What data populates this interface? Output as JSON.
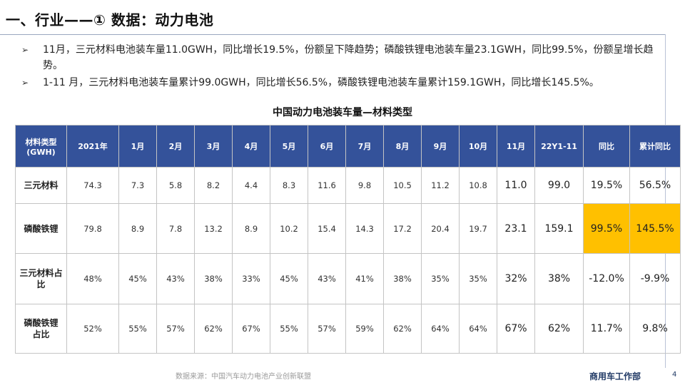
{
  "title": "一、行业——① 数据：动力电池",
  "bullets": [
    {
      "arrow": "➢",
      "text": "11月，三元材料电池装车量11.0GWH，同比增长19.5%，份额呈下降趋势；磷酸铁锂电池装车量23.1GWH，同比99.5%，份额呈增长趋势。"
    },
    {
      "arrow": "➢",
      "text": "1-11 月，三元材料电池装车量累计99.0GWH，同比增长56.5%，磷酸铁锂电池装车量累计159.1GWH，同比增长145.5%。"
    }
  ],
  "table": {
    "title": "中国动力电池装车量—材料类型",
    "header_corner": [
      "材料类型",
      "(GWH)"
    ],
    "columns": [
      "2021年",
      "1月",
      "2月",
      "3月",
      "4月",
      "5月",
      "6月",
      "7月",
      "8月",
      "9月",
      "10月",
      "11月",
      "22Y1-11",
      "同比",
      "累计同比"
    ],
    "rows": [
      {
        "label": [
          "三元材料"
        ],
        "cells": [
          "74.3",
          "7.3",
          "5.8",
          "8.2",
          "4.4",
          "8.3",
          "11.6",
          "9.8",
          "10.5",
          "11.2",
          "10.8",
          "11.0",
          "99.0",
          "19.5%",
          "56.5%"
        ]
      },
      {
        "label": [
          "磷酸铁锂"
        ],
        "cells": [
          "79.8",
          "8.9",
          "7.8",
          "13.2",
          "8.9",
          "10.2",
          "15.4",
          "14.3",
          "17.2",
          "20.4",
          "19.7",
          "23.1",
          "159.1",
          "99.5%",
          "145.5%"
        ]
      },
      {
        "label": [
          "三元材料占",
          "比"
        ],
        "cells": [
          "48%",
          "45%",
          "43%",
          "38%",
          "33%",
          "45%",
          "43%",
          "41%",
          "38%",
          "35%",
          "35%",
          "32%",
          "38%",
          "-12.0%",
          "-9.9%"
        ]
      },
      {
        "label": [
          "磷酸铁锂",
          "占比"
        ],
        "cells": [
          "52%",
          "55%",
          "57%",
          "62%",
          "67%",
          "55%",
          "57%",
          "59%",
          "62%",
          "64%",
          "64%",
          "67%",
          "62%",
          "11.7%",
          "9.8%"
        ]
      }
    ],
    "highlight_cells": [
      [
        1,
        13
      ],
      [
        1,
        14
      ]
    ],
    "colors": {
      "header_bg": "#34529a",
      "highlight": "#ffc000"
    }
  },
  "footer": {
    "source": "数据来源：中国汽车动力电池产业创新联盟",
    "department": "商用车工作部",
    "page": "4"
  }
}
